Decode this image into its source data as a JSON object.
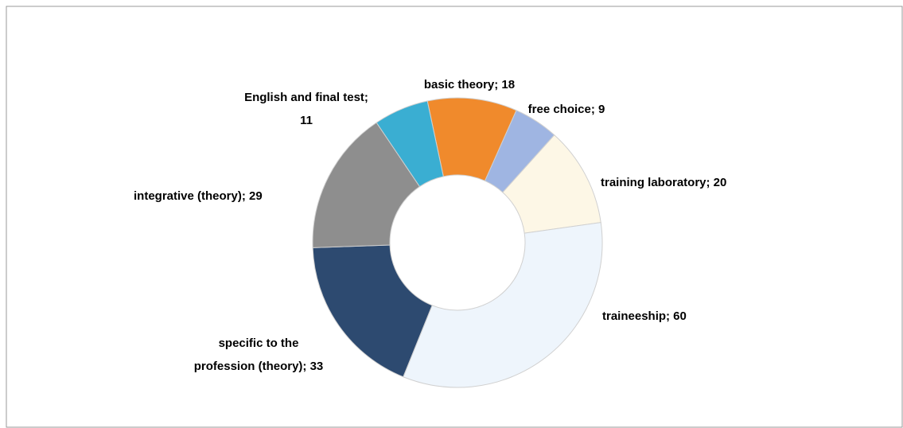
{
  "chart_data": {
    "type": "donut",
    "labels": [
      [
        "basic theory; 18"
      ],
      [
        "free choice; 9"
      ],
      [
        "training laboratory; 20"
      ],
      [
        "traineeship; 60"
      ],
      [
        "specific to the",
        "profession (theory); 33"
      ],
      [
        "integrative (theory); 29"
      ],
      [
        "English and final test;",
        "11"
      ]
    ],
    "values": [
      18,
      9,
      20,
      60,
      33,
      29,
      11
    ],
    "colors": [
      "#f08a2c",
      "#9fb5e2",
      "#fdf7e6",
      "#eef5fc",
      "#2d4a70",
      "#8e8e8e",
      "#3aaed2"
    ]
  }
}
